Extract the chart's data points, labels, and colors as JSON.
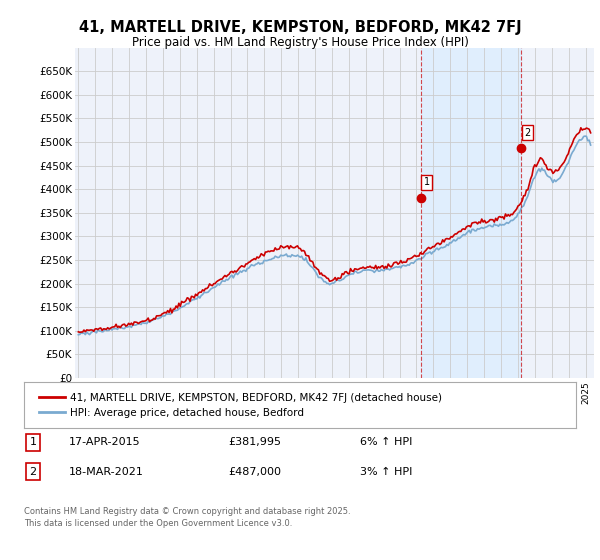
{
  "title_line1": "41, MARTELL DRIVE, KEMPSTON, BEDFORD, MK42 7FJ",
  "title_line2": "Price paid vs. HM Land Registry's House Price Index (HPI)",
  "background_color": "#ffffff",
  "plot_bg_color": "#eef2fa",
  "grid_color": "#cccccc",
  "shade_color": "#ddeeff",
  "red_line_color": "#cc0000",
  "blue_line_color": "#7aaad0",
  "vline_color": "#cc0000",
  "legend_label1": "41, MARTELL DRIVE, KEMPSTON, BEDFORD, MK42 7FJ (detached house)",
  "legend_label2": "HPI: Average price, detached house, Bedford",
  "event1_label": "1",
  "event1_date": "17-APR-2015",
  "event1_price": "£381,995",
  "event1_pct": "6% ↑ HPI",
  "event2_label": "2",
  "event2_date": "18-MAR-2021",
  "event2_price": "£487,000",
  "event2_pct": "3% ↑ HPI",
  "footnote": "Contains HM Land Registry data © Crown copyright and database right 2025.\nThis data is licensed under the Open Government Licence v3.0.",
  "ylim": [
    0,
    700000
  ],
  "yticks": [
    0,
    50000,
    100000,
    150000,
    200000,
    250000,
    300000,
    350000,
    400000,
    450000,
    500000,
    550000,
    600000,
    650000
  ],
  "ytick_labels": [
    "£0",
    "£50K",
    "£100K",
    "£150K",
    "£200K",
    "£250K",
    "£300K",
    "£350K",
    "£400K",
    "£450K",
    "£500K",
    "£550K",
    "£600K",
    "£650K"
  ],
  "event1_x": 2015.29,
  "event1_y": 381995,
  "event2_x": 2021.21,
  "event2_y": 487000,
  "xlim_start": 1994.8,
  "xlim_end": 2025.5
}
